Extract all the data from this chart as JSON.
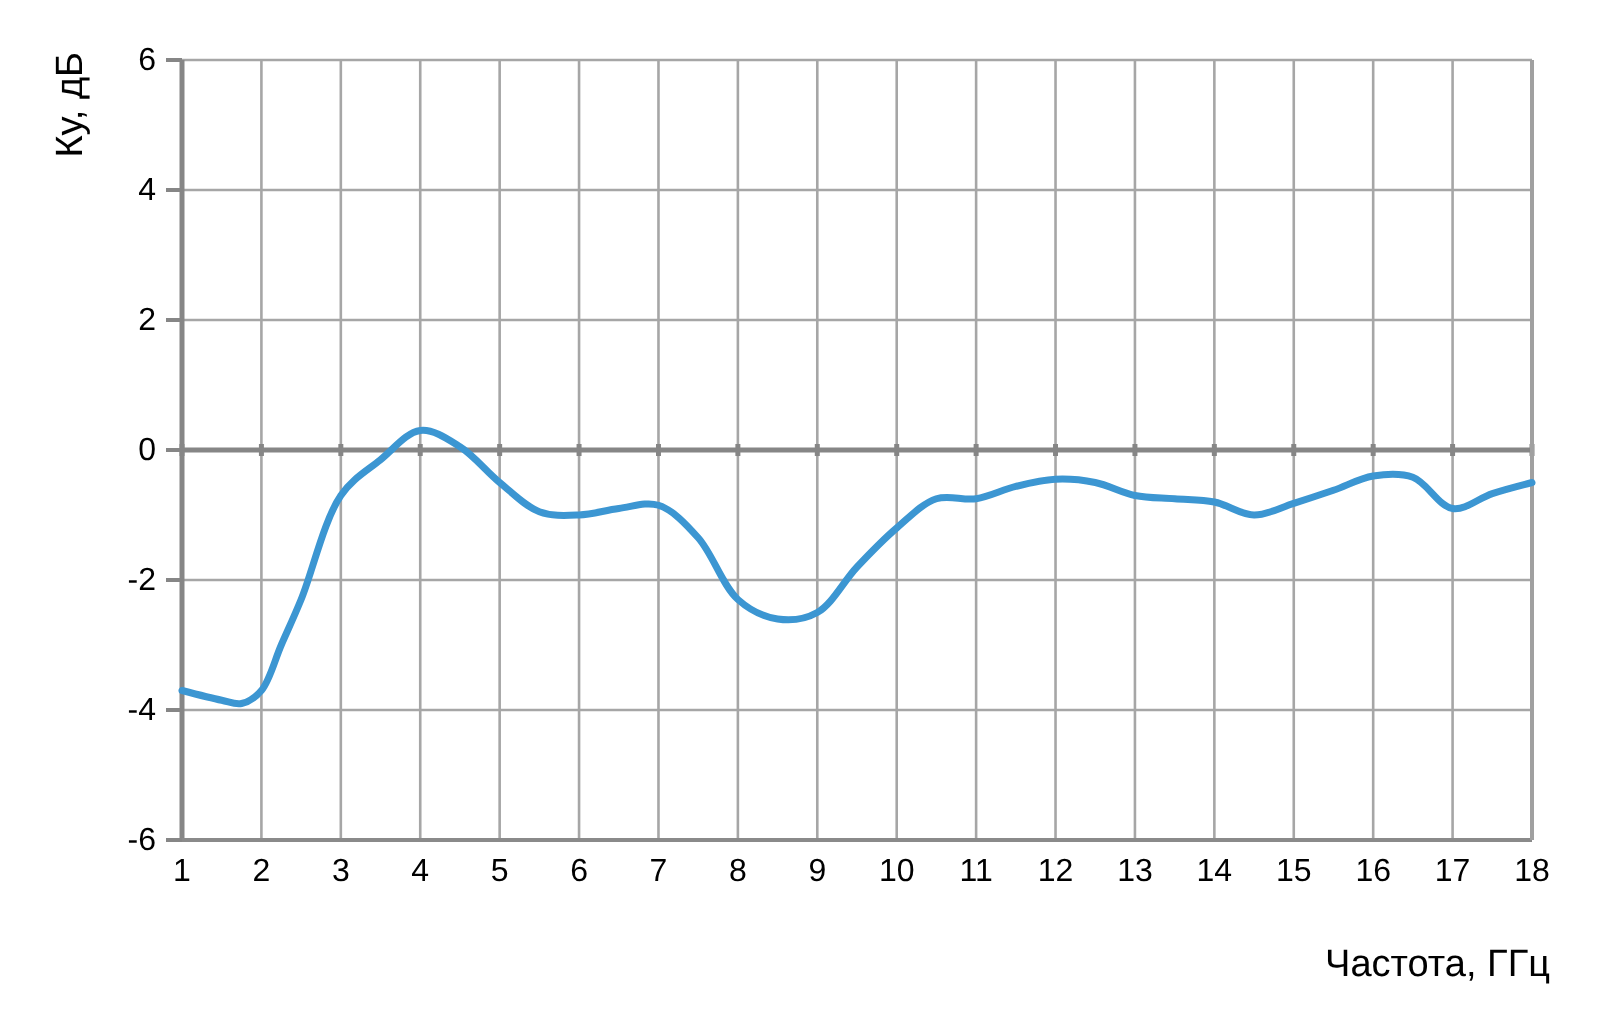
{
  "chart_data": {
    "type": "line",
    "xlabel": "Частота, ГГц",
    "ylabel": "Ку, дБ",
    "x": [
      1,
      1.5,
      1.75,
      2,
      2.25,
      2.5,
      3,
      3.5,
      4,
      4.5,
      5,
      5.5,
      6,
      6.5,
      7,
      7.5,
      8,
      8.5,
      9,
      9.5,
      10,
      10.5,
      11,
      11.5,
      12,
      12.5,
      13,
      13.5,
      14,
      14.5,
      15,
      15.5,
      16,
      16.5,
      17,
      17.5,
      18
    ],
    "series": [
      {
        "color": "#3c96d2",
        "values": [
          -3.7,
          -3.85,
          -3.9,
          -3.7,
          -3.0,
          -2.3,
          -0.7,
          -0.15,
          0.3,
          0.05,
          -0.5,
          -0.95,
          -1.0,
          -0.9,
          -0.85,
          -1.35,
          -2.3,
          -2.6,
          -2.5,
          -1.8,
          -1.2,
          -0.75,
          -0.75,
          -0.56,
          -0.45,
          -0.5,
          -0.7,
          -0.75,
          -0.8,
          -1.0,
          -0.82,
          -0.62,
          -0.4,
          -0.42,
          -0.9,
          -0.67,
          -0.5
        ]
      }
    ],
    "xlim": [
      1,
      18
    ],
    "xticks": [
      1,
      2,
      3,
      4,
      5,
      6,
      7,
      8,
      9,
      10,
      11,
      12,
      13,
      14,
      15,
      16,
      17,
      18
    ],
    "ylim": [
      -6,
      6
    ],
    "yticks": [
      -6,
      -4,
      -2,
      0,
      2,
      4,
      6
    ],
    "grid": true,
    "marker": "none",
    "line_style": "solid"
  }
}
